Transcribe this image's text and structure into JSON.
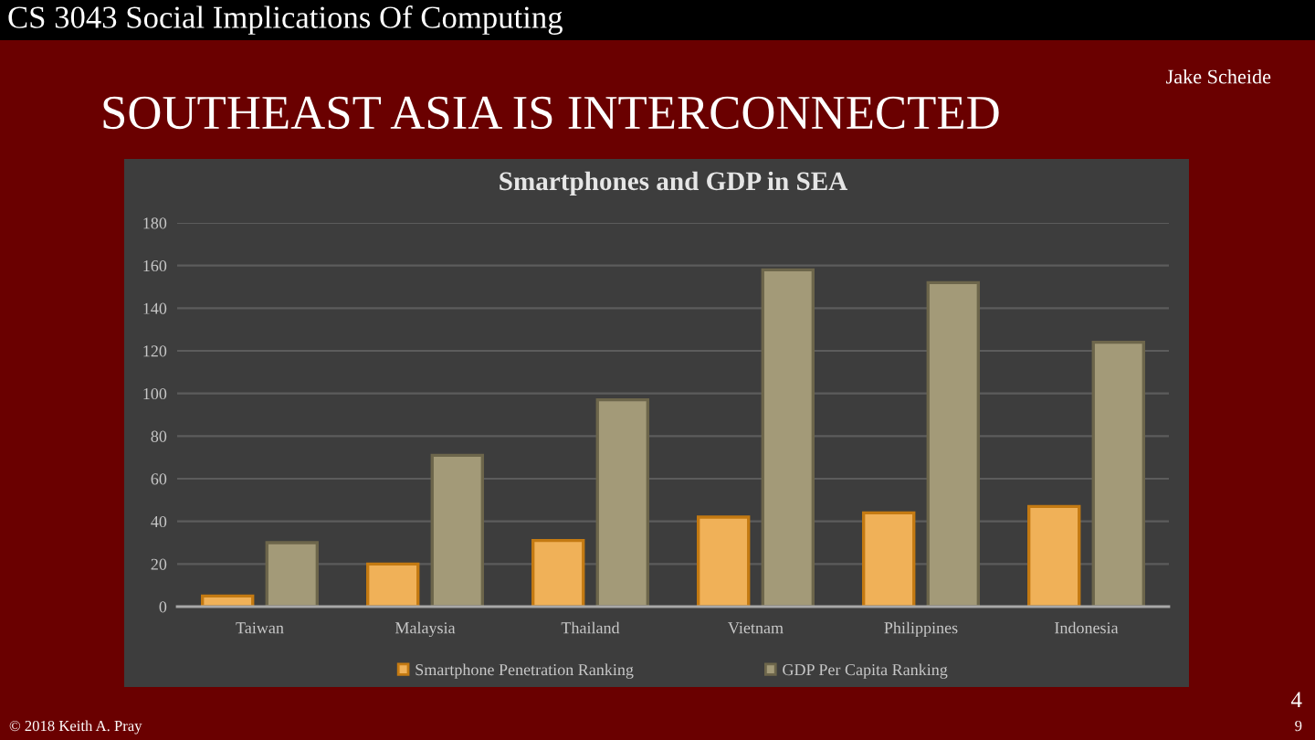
{
  "chart_data": {
    "type": "bar",
    "title": "Smartphones and GDP in SEA",
    "categories": [
      "Taiwan",
      "Malaysia",
      "Thailand",
      "Vietnam",
      "Philippines",
      "Indonesia"
    ],
    "series": [
      {
        "name": "Smartphone Penetration Ranking",
        "color": "#f0b158",
        "values": [
          5,
          20,
          31,
          42,
          44,
          47
        ]
      },
      {
        "name": "GDP Per Capita Ranking",
        "color": "#a39a78",
        "values": [
          30,
          71,
          97,
          158,
          152,
          124
        ]
      }
    ],
    "ylim": [
      0,
      180
    ],
    "yticks": [
      0,
      20,
      40,
      60,
      80,
      100,
      120,
      140,
      160,
      180
    ],
    "grid": "y",
    "legend": "bottom",
    "annotations": [
      "CS 3043 Social Implications Of Computing",
      "Jake Scheide",
      "SOUTHEAST ASIA IS INTERCONNECTED",
      "© 2018 Keith A. Pray",
      "4",
      "9"
    ]
  }
}
